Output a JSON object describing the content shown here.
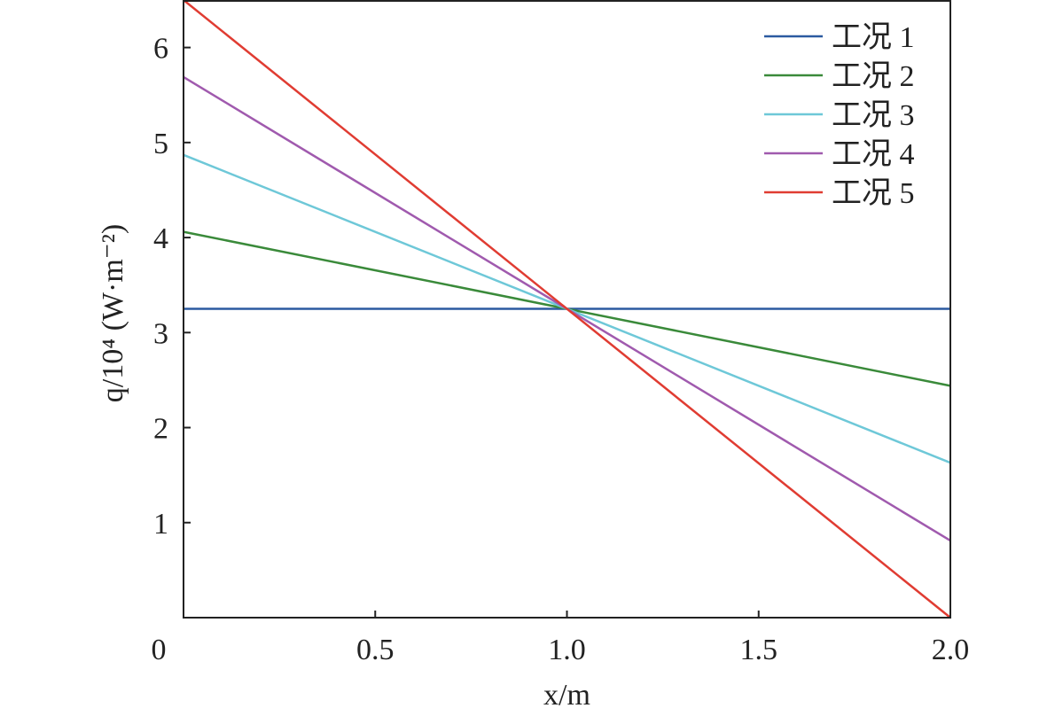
{
  "chart_data": {
    "type": "line",
    "xlabel": "x/m",
    "ylabel": "q/10⁴ (W·m⁻²)",
    "xlim": [
      0,
      2.0
    ],
    "ylim": [
      0,
      6.5
    ],
    "x_ticks": [
      "0",
      "0.5",
      "1.0",
      "1.5",
      "2.0"
    ],
    "y_ticks": [
      "1",
      "2",
      "3",
      "4",
      "5",
      "6"
    ],
    "x_tick_values": [
      0,
      0.5,
      1.0,
      1.5,
      2.0
    ],
    "y_tick_values": [
      1,
      2,
      3,
      4,
      5,
      6
    ],
    "legend_position": "top-right",
    "grid": false,
    "series": [
      {
        "name": "工况 1",
        "color": "#2c5aa0",
        "x": [
          0,
          2.0
        ],
        "y": [
          3.25,
          3.25
        ]
      },
      {
        "name": "工况 2",
        "color": "#3a8a3a",
        "x": [
          0,
          2.0
        ],
        "y": [
          4.06,
          2.44
        ]
      },
      {
        "name": "工况 3",
        "color": "#6ec8d8",
        "x": [
          0,
          2.0
        ],
        "y": [
          4.87,
          1.63
        ]
      },
      {
        "name": "工况 4",
        "color": "#a05aae",
        "x": [
          0,
          2.0
        ],
        "y": [
          5.69,
          0.81
        ]
      },
      {
        "name": "工况 5",
        "color": "#e03c32",
        "x": [
          0,
          2.0
        ],
        "y": [
          6.5,
          0.0
        ]
      }
    ]
  }
}
